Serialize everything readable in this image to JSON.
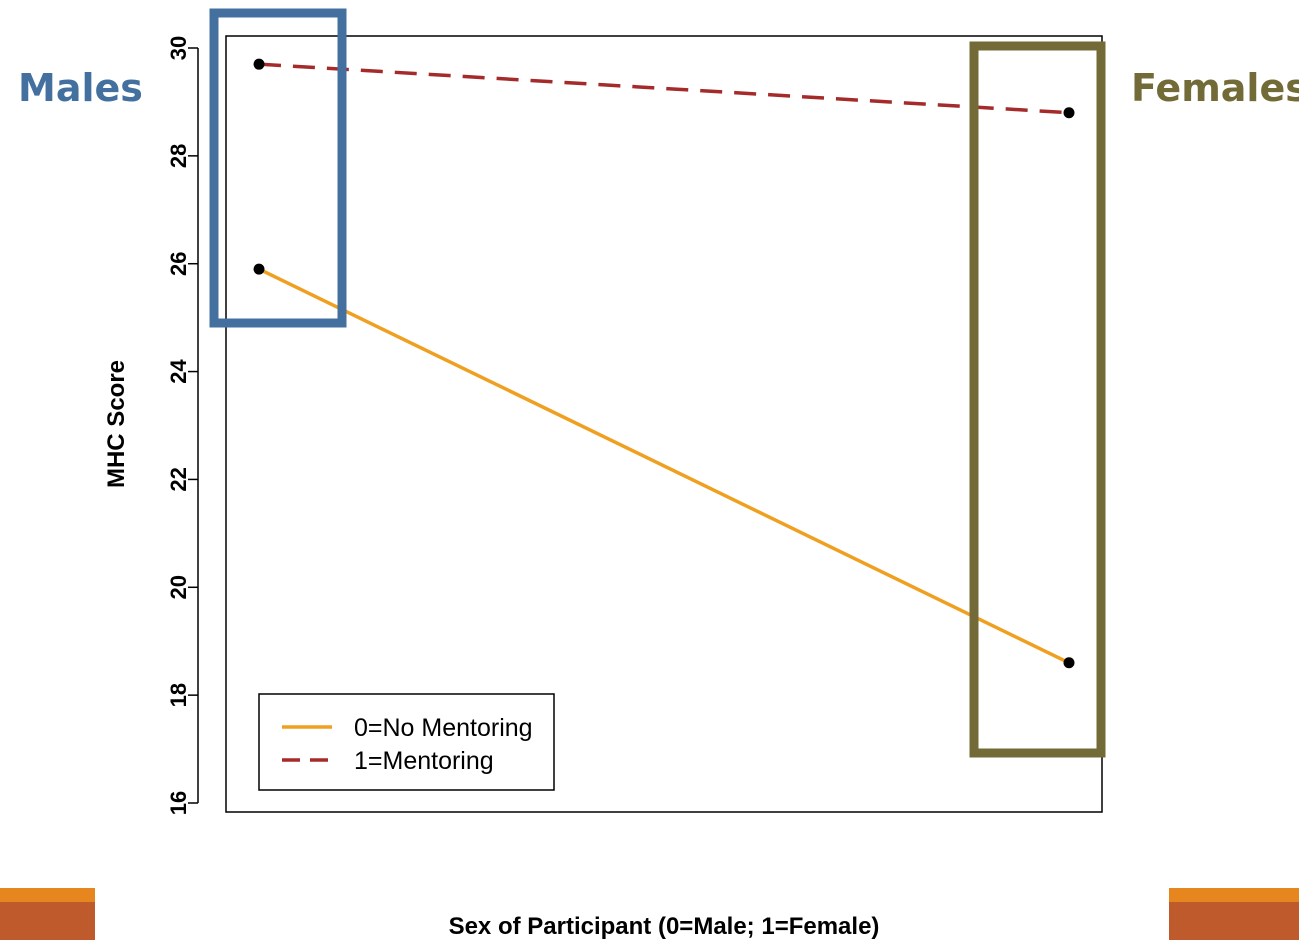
{
  "annotations": {
    "males_label": "Males",
    "females_label": "Females",
    "males_color": "#44709f",
    "females_color": "#736b37"
  },
  "colors": {
    "series_0": "#f0a020",
    "series_1": "#a52a2a",
    "points": "#000000",
    "corner_orange": "#e5861e",
    "corner_rust": "#bf5a2c"
  },
  "chart_data": {
    "type": "line",
    "xlabel": "Sex of Participant (0=Male; 1=Female)",
    "ylabel": "MHC Score",
    "x": [
      0,
      1
    ],
    "ylim": [
      16,
      30
    ],
    "yticks": [
      16,
      18,
      20,
      22,
      24,
      26,
      28,
      30
    ],
    "grid": false,
    "legend_position": "bottom-left",
    "series": [
      {
        "name": "0=No Mentoring",
        "values": [
          25.9,
          18.6
        ],
        "style": "solid"
      },
      {
        "name": "1=Mentoring",
        "values": [
          29.7,
          28.8
        ],
        "style": "dashed"
      }
    ]
  }
}
